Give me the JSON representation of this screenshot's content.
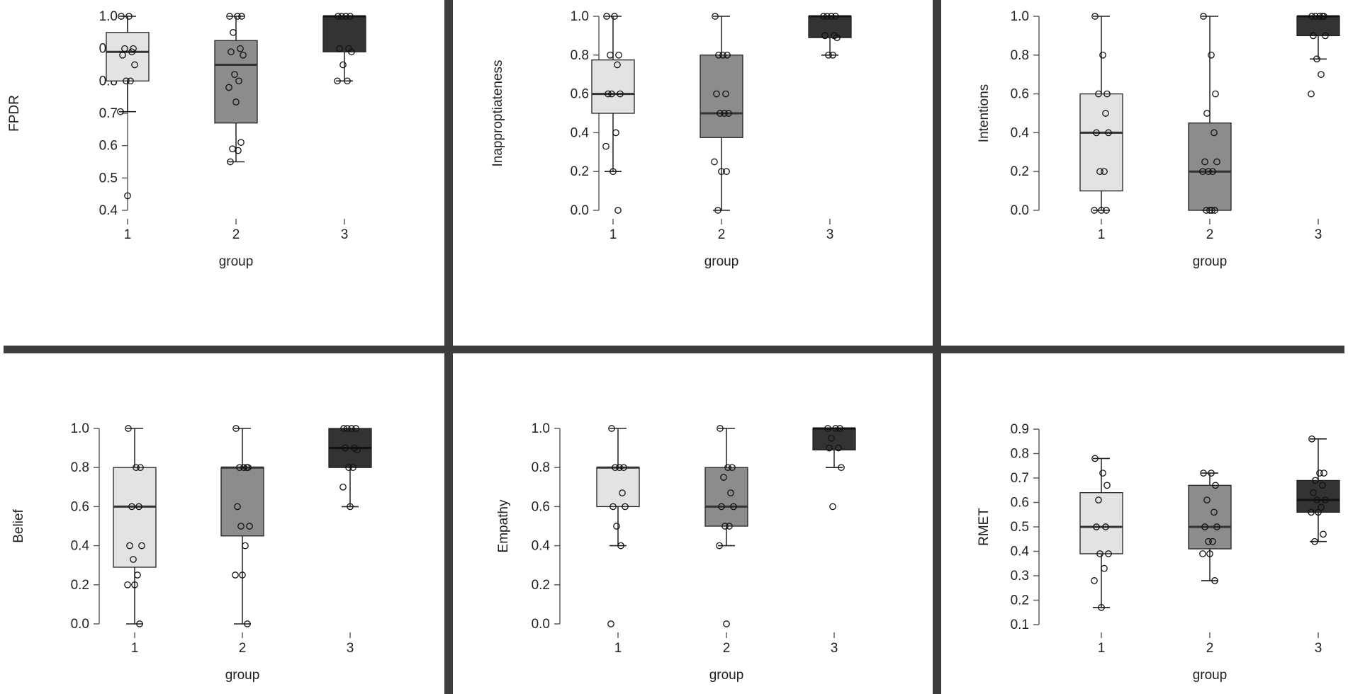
{
  "colors": {
    "background": "#ffffff",
    "divider": "#3d3d3d",
    "axis": "#555555",
    "median": "#333333",
    "points": "#111111",
    "group_fills": [
      "#e3e3e3",
      "#8c8c8c",
      "#333333"
    ]
  },
  "chart_data": [
    {
      "type": "box",
      "xlabel": "group",
      "ylabel": "FPDR",
      "categories": [
        "1",
        "2",
        "3"
      ],
      "y_ticks": [
        "0.4",
        "0.5",
        "0.6",
        "0.7",
        "0.8",
        "0.9",
        "1.0"
      ],
      "ylim": [
        0.4,
        1.0
      ],
      "boxes": [
        {
          "group": "1",
          "whisker_low": 0.705,
          "q1": 0.8,
          "median": 0.89,
          "q3": 0.95,
          "whisker_high": 1.0,
          "points": [
            1.0,
            1.0,
            0.9,
            0.9,
            0.89,
            0.88,
            0.85,
            0.8,
            0.8,
            0.705,
            0.445
          ]
        },
        {
          "group": "2",
          "whisker_low": 0.55,
          "q1": 0.67,
          "median": 0.85,
          "q3": 0.925,
          "whisker_high": 1.0,
          "points": [
            1.0,
            1.0,
            1.0,
            0.95,
            0.9,
            0.89,
            0.88,
            0.82,
            0.8,
            0.78,
            0.735,
            0.61,
            0.59,
            0.585,
            0.55
          ]
        },
        {
          "group": "3",
          "whisker_low": 0.8,
          "q1": 0.89,
          "median": 1.0,
          "q3": 1.0,
          "whisker_high": 1.0,
          "points": [
            1.0,
            1.0,
            1.0,
            1.0,
            0.9,
            0.9,
            0.89,
            0.85,
            0.8,
            0.8
          ]
        }
      ]
    },
    {
      "type": "box",
      "xlabel": "group",
      "ylabel": "Inapproptiateness",
      "categories": [
        "1",
        "2",
        "3"
      ],
      "y_ticks": [
        "0.0",
        "0.2",
        "0.4",
        "0.6",
        "0.8",
        "1.0"
      ],
      "ylim": [
        0.0,
        1.0
      ],
      "boxes": [
        {
          "group": "1",
          "whisker_low": 0.2,
          "q1": 0.5,
          "median": 0.6,
          "q3": 0.775,
          "whisker_high": 1.0,
          "points": [
            1.0,
            1.0,
            0.8,
            0.8,
            0.75,
            0.6,
            0.6,
            0.6,
            0.4,
            0.33,
            0.2,
            0.0
          ]
        },
        {
          "group": "2",
          "whisker_low": 0.0,
          "q1": 0.375,
          "median": 0.5,
          "q3": 0.8,
          "whisker_high": 1.0,
          "points": [
            1.0,
            0.8,
            0.8,
            0.8,
            0.6,
            0.6,
            0.5,
            0.5,
            0.5,
            0.25,
            0.2,
            0.2,
            0.0
          ]
        },
        {
          "group": "3",
          "whisker_low": 0.8,
          "q1": 0.89,
          "median": 1.0,
          "q3": 1.0,
          "whisker_high": 1.0,
          "points": [
            1.0,
            1.0,
            1.0,
            1.0,
            0.9,
            0.9,
            0.89,
            0.8,
            0.8
          ]
        }
      ]
    },
    {
      "type": "box",
      "xlabel": "group",
      "ylabel": "Intentions",
      "categories": [
        "1",
        "2",
        "3"
      ],
      "y_ticks": [
        "0.0",
        "0.2",
        "0.4",
        "0.6",
        "0.8",
        "1.0"
      ],
      "ylim": [
        0.0,
        1.0
      ],
      "boxes": [
        {
          "group": "1",
          "whisker_low": 0.0,
          "q1": 0.1,
          "median": 0.4,
          "q3": 0.6,
          "whisker_high": 1.0,
          "points": [
            1.0,
            0.8,
            0.6,
            0.6,
            0.5,
            0.4,
            0.4,
            0.2,
            0.2,
            0.0,
            0.0,
            0.0
          ]
        },
        {
          "group": "2",
          "whisker_low": 0.0,
          "q1": 0.0,
          "median": 0.2,
          "q3": 0.45,
          "whisker_high": 1.0,
          "points": [
            1.0,
            0.8,
            0.6,
            0.5,
            0.4,
            0.25,
            0.25,
            0.2,
            0.2,
            0.2,
            0.0,
            0.0,
            0.0,
            0.0
          ]
        },
        {
          "group": "3",
          "whisker_low": 0.78,
          "q1": 0.9,
          "median": 1.0,
          "q3": 1.0,
          "whisker_high": 1.0,
          "points": [
            1.0,
            1.0,
            1.0,
            1.0,
            1.0,
            0.9,
            0.9,
            0.78,
            0.7,
            0.6
          ]
        }
      ]
    },
    {
      "type": "box",
      "xlabel": "group",
      "ylabel": "Belief",
      "categories": [
        "1",
        "2",
        "3"
      ],
      "y_ticks": [
        "0.0",
        "0.2",
        "0.4",
        "0.6",
        "0.8",
        "1.0"
      ],
      "ylim": [
        0.0,
        1.0
      ],
      "boxes": [
        {
          "group": "1",
          "whisker_low": 0.0,
          "q1": 0.29,
          "median": 0.6,
          "q3": 0.8,
          "whisker_high": 1.0,
          "points": [
            1.0,
            0.8,
            0.8,
            0.6,
            0.6,
            0.4,
            0.4,
            0.33,
            0.25,
            0.2,
            0.2,
            0.0
          ]
        },
        {
          "group": "2",
          "whisker_low": 0.0,
          "q1": 0.45,
          "median": 0.8,
          "q3": 0.8,
          "whisker_high": 1.0,
          "points": [
            1.0,
            0.8,
            0.8,
            0.8,
            0.8,
            0.6,
            0.5,
            0.5,
            0.4,
            0.25,
            0.25,
            0.0
          ]
        },
        {
          "group": "3",
          "whisker_low": 0.6,
          "q1": 0.8,
          "median": 0.9,
          "q3": 1.0,
          "whisker_high": 1.0,
          "points": [
            1.0,
            1.0,
            1.0,
            1.0,
            0.9,
            0.9,
            0.89,
            0.8,
            0.8,
            0.7,
            0.6
          ]
        }
      ]
    },
    {
      "type": "box",
      "xlabel": "group",
      "ylabel": "Empathy",
      "categories": [
        "1",
        "2",
        "3"
      ],
      "y_ticks": [
        "0.0",
        "0.2",
        "0.4",
        "0.6",
        "0.8",
        "1.0"
      ],
      "ylim": [
        0.0,
        1.0
      ],
      "boxes": [
        {
          "group": "1",
          "whisker_low": 0.4,
          "q1": 0.6,
          "median": 0.8,
          "q3": 0.8,
          "whisker_high": 1.0,
          "points": [
            1.0,
            0.8,
            0.8,
            0.8,
            0.67,
            0.6,
            0.6,
            0.5,
            0.4,
            0.0
          ]
        },
        {
          "group": "2",
          "whisker_low": 0.4,
          "q1": 0.5,
          "median": 0.6,
          "q3": 0.8,
          "whisker_high": 1.0,
          "points": [
            1.0,
            0.8,
            0.8,
            0.75,
            0.67,
            0.6,
            0.6,
            0.5,
            0.5,
            0.4,
            0.0
          ]
        },
        {
          "group": "3",
          "whisker_low": 0.8,
          "q1": 0.89,
          "median": 1.0,
          "q3": 1.0,
          "whisker_high": 1.0,
          "points": [
            1.0,
            1.0,
            1.0,
            0.95,
            0.9,
            0.9,
            0.8,
            0.6
          ]
        }
      ]
    },
    {
      "type": "box",
      "xlabel": "group",
      "ylabel": "RMET",
      "categories": [
        "1",
        "2",
        "3"
      ],
      "y_ticks": [
        "0.1",
        "0.2",
        "0.3",
        "0.4",
        "0.5",
        "0.6",
        "0.7",
        "0.8",
        "0.9"
      ],
      "ylim": [
        0.1,
        0.9
      ],
      "boxes": [
        {
          "group": "1",
          "whisker_low": 0.17,
          "q1": 0.39,
          "median": 0.5,
          "q3": 0.64,
          "whisker_high": 0.78,
          "points": [
            0.78,
            0.72,
            0.67,
            0.61,
            0.5,
            0.5,
            0.39,
            0.39,
            0.33,
            0.28,
            0.17
          ]
        },
        {
          "group": "2",
          "whisker_low": 0.28,
          "q1": 0.41,
          "median": 0.5,
          "q3": 0.67,
          "whisker_high": 0.72,
          "points": [
            0.72,
            0.72,
            0.67,
            0.61,
            0.56,
            0.5,
            0.5,
            0.44,
            0.44,
            0.39,
            0.39,
            0.28
          ]
        },
        {
          "group": "3",
          "whisker_low": 0.44,
          "q1": 0.56,
          "median": 0.61,
          "q3": 0.69,
          "whisker_high": 0.86,
          "points": [
            0.86,
            0.72,
            0.72,
            0.69,
            0.67,
            0.64,
            0.61,
            0.61,
            0.58,
            0.56,
            0.56,
            0.47,
            0.44
          ]
        }
      ]
    }
  ]
}
